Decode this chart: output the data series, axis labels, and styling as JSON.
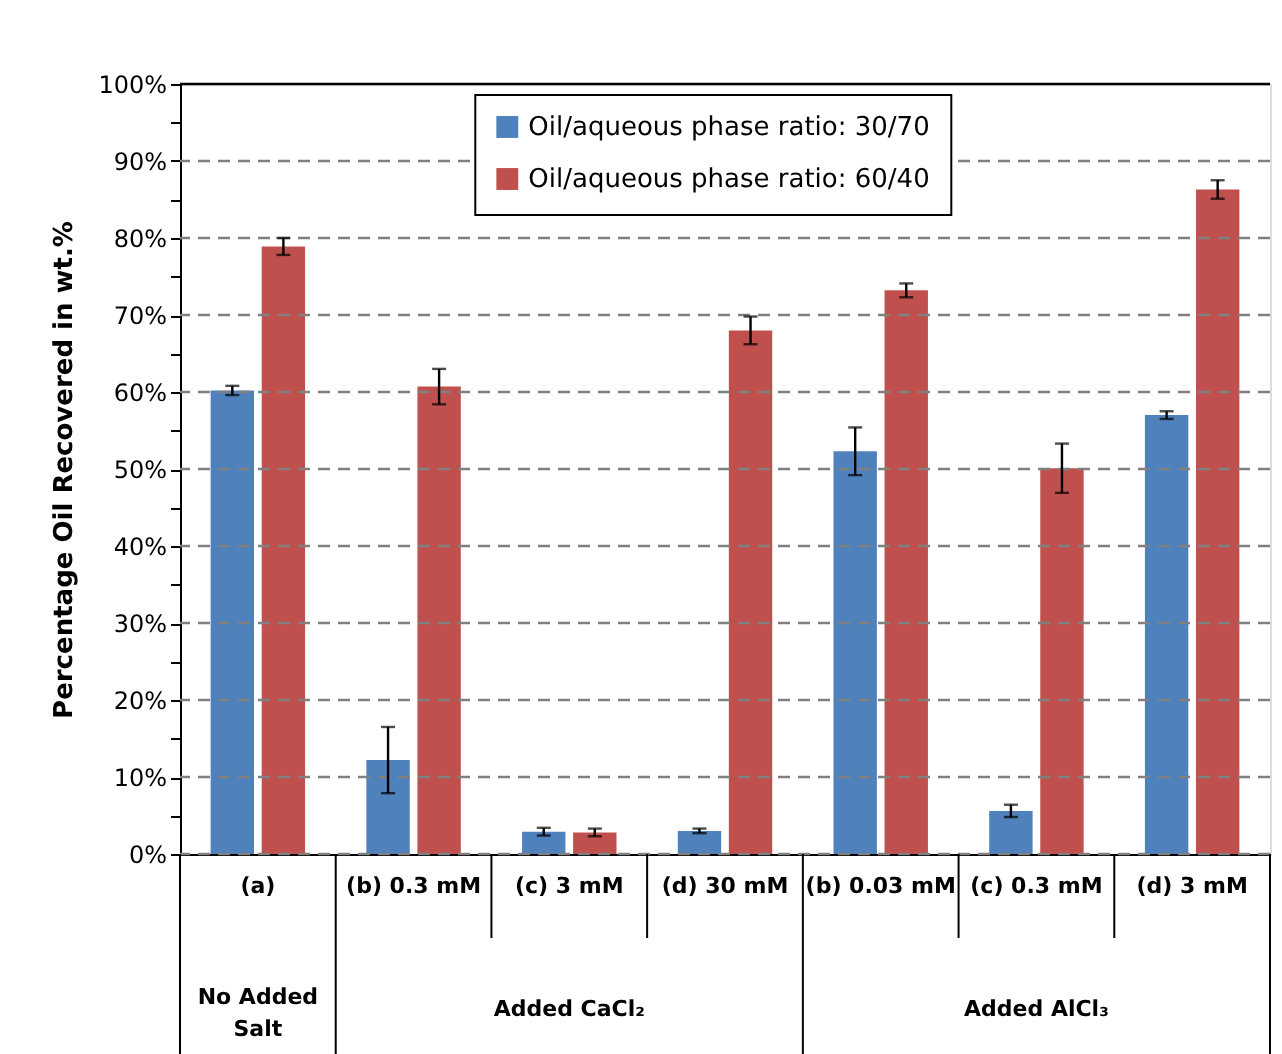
{
  "chart_data": {
    "type": "bar",
    "ylabel": "Percentage Oil Recovered in wt.%",
    "categories": [
      "(a)",
      "(b) 0.3 mM",
      "(c) 3 mM",
      "(d) 30 mM",
      "(b) 0.03 mM",
      "(c) 0.3 mM",
      "(d) 3 mM"
    ],
    "series": [
      {
        "name": "Oil/aqueous phase ratio: 30/70",
        "color": "#4f81bd",
        "values": [
          60.2,
          12.2,
          2.9,
          3.0,
          52.3,
          5.6,
          57.0
        ],
        "errors": [
          0.6,
          4.3,
          0.5,
          0.3,
          3.1,
          0.8,
          0.5
        ]
      },
      {
        "name": "Oil/aqueous phase ratio: 60/40",
        "color": "#c0504d",
        "values": [
          78.9,
          60.7,
          2.8,
          68.0,
          73.2,
          50.1,
          86.3
        ],
        "errors": [
          1.1,
          2.3,
          0.5,
          1.8,
          0.9,
          3.2,
          1.2
        ]
      }
    ],
    "ylim": [
      0,
      100
    ],
    "yticks": [
      {
        "value": 0,
        "label": "0%"
      },
      {
        "value": 5,
        "label": null
      },
      {
        "value": 10,
        "label": "10%"
      },
      {
        "value": 15,
        "label": null
      },
      {
        "value": 20,
        "label": "20%"
      },
      {
        "value": 25,
        "label": null
      },
      {
        "value": 30,
        "label": "30%"
      },
      {
        "value": 35,
        "label": null
      },
      {
        "value": 40,
        "label": "40%"
      },
      {
        "value": 45,
        "label": null
      },
      {
        "value": 50,
        "label": "50%"
      },
      {
        "value": 55,
        "label": null
      },
      {
        "value": 60,
        "label": "60%"
      },
      {
        "value": 65,
        "label": null
      },
      {
        "value": 70,
        "label": "70%"
      },
      {
        "value": 75,
        "label": null
      },
      {
        "value": 80,
        "label": "80%"
      },
      {
        "value": 85,
        "label": null
      },
      {
        "value": 90,
        "label": "90%"
      },
      {
        "value": 95,
        "label": null
      },
      {
        "value": 100,
        "label": "100%"
      }
    ],
    "grid": "y",
    "legend": "top",
    "annotations": [
      "No Added Salt",
      "Added CaCl₂",
      "Added AlCl₃"
    ]
  }
}
